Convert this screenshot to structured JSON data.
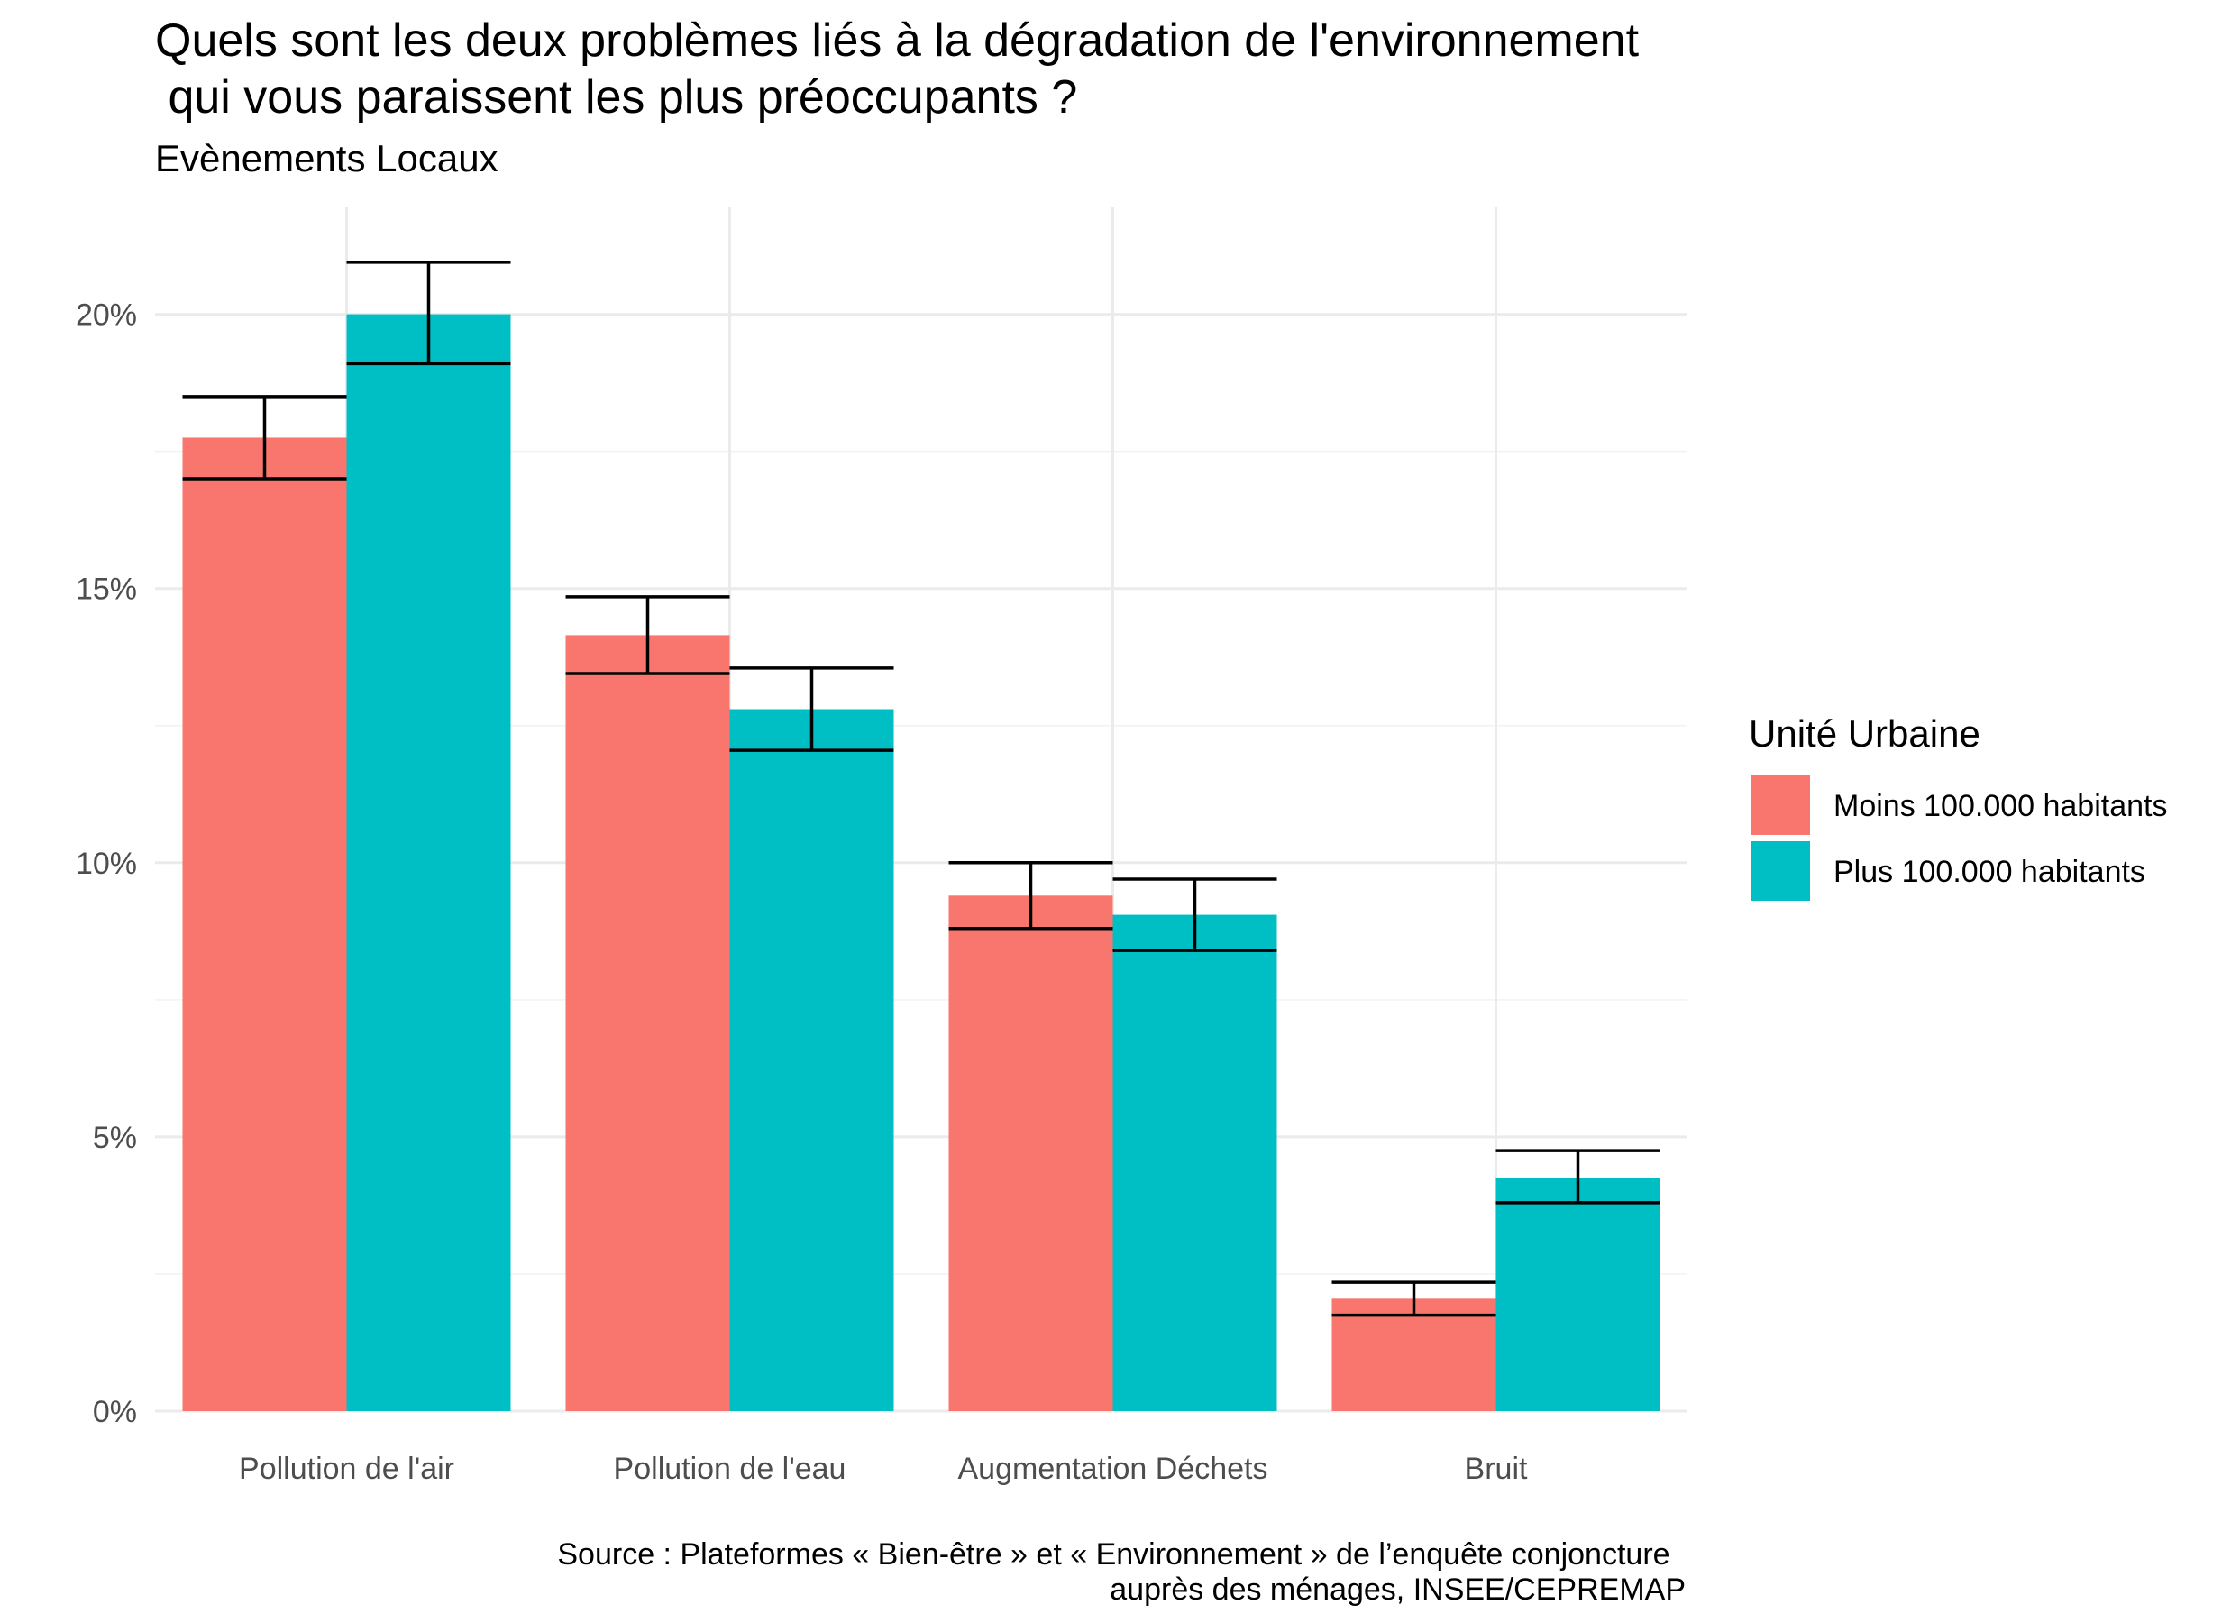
{
  "chart_data": {
    "type": "bar",
    "title": "Quels sont les deux problèmes liés à la dégradation de l'environnement",
    "title_line2": " qui vous paraissent les plus préoccupants ?",
    "subtitle": "Evènements Locaux",
    "categories": [
      "Pollution de l'air",
      "Pollution de l'eau",
      "Augmentation Déchets",
      "Bruit"
    ],
    "series": [
      {
        "name": "Moins 100.000 habitants",
        "color": "#F8766D",
        "values": [
          17.75,
          14.15,
          9.4,
          2.05
        ],
        "error_low": [
          17.0,
          13.45,
          8.8,
          1.75
        ],
        "error_high": [
          18.5,
          14.85,
          10.0,
          2.35
        ]
      },
      {
        "name": "Plus 100.000 habitants",
        "color": "#00BFC4",
        "values": [
          20.0,
          12.8,
          9.05,
          4.25
        ],
        "error_low": [
          19.1,
          12.05,
          8.4,
          3.8
        ],
        "error_high": [
          20.95,
          13.55,
          9.7,
          4.75
        ]
      }
    ],
    "ylim": [
      0,
      21.95
    ],
    "y_ticks": [
      0,
      5,
      10,
      15,
      20
    ],
    "y_tick_labels": [
      "0%",
      "5%",
      "10%",
      "15%",
      "20%"
    ],
    "y_minor_ticks": [
      2.5,
      7.5,
      12.5,
      17.5
    ],
    "grid": true,
    "legend": {
      "title": "Unité Urbaine",
      "position": "right"
    },
    "caption_line1": "Source : Plateformes « Bien-être » et « Environnement » de l’enquête conjoncture ",
    "caption_line2": "auprès des ménages, INSEE/CEPREMAP"
  }
}
